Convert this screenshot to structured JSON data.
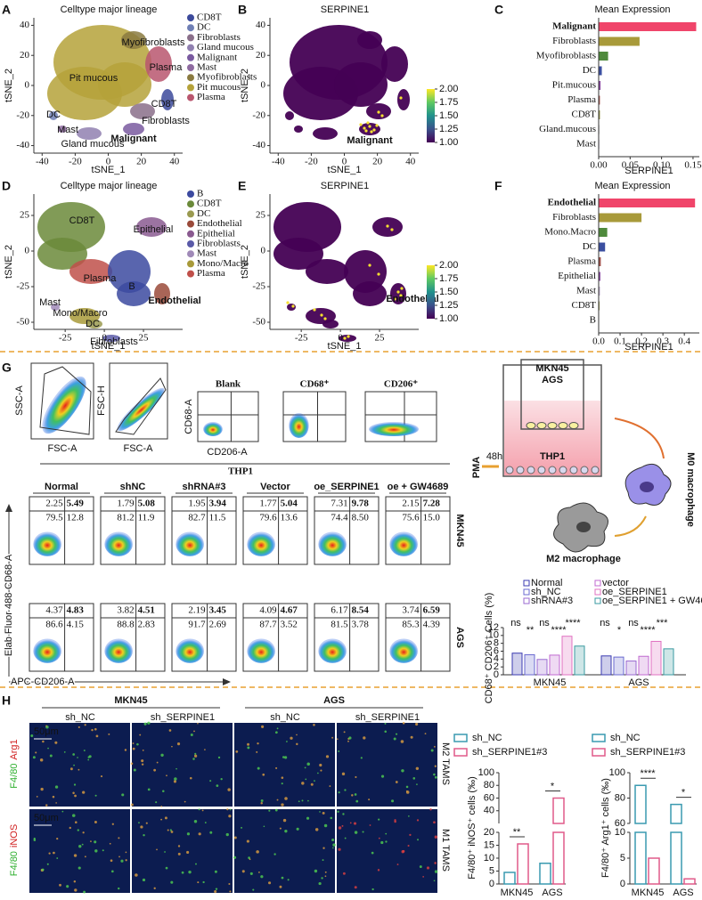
{
  "A": {
    "letter": "A",
    "title": "Celltype major lineage",
    "x_label": "tSNE_1",
    "y_label": "tSNE_2",
    "xticks": [
      -40,
      -20,
      0,
      20,
      40
    ],
    "yticks": [
      40,
      20,
      0,
      -20,
      -40
    ],
    "xlim": [
      -45,
      45
    ],
    "ylim": [
      -45,
      45
    ],
    "legend": [
      {
        "name": "CD8T",
        "color": "#3c4a9b"
      },
      {
        "name": "DC",
        "color": "#6f7fb5"
      },
      {
        "name": "Fibroblasts",
        "color": "#8a6f8a"
      },
      {
        "name": "Gland mucous",
        "color": "#9080b0"
      },
      {
        "name": "Malignant",
        "color": "#7a5aa0"
      },
      {
        "name": "Mast",
        "color": "#8e6aa0"
      },
      {
        "name": "Myofibroblasts",
        "color": "#8a7a40"
      },
      {
        "name": "Pit mucous",
        "color": "#b5a23a"
      },
      {
        "name": "Plasma",
        "color": "#b9566e"
      }
    ],
    "cluster_labels": [
      "Myofibroblasts",
      "Plasma",
      "Pit mucous",
      "CD8T",
      "Fibroblasts",
      "DC",
      "Mast",
      "Gland mucous",
      "Malignant"
    ]
  },
  "B": {
    "letter": "B",
    "title": "SERPINE1",
    "x_label": "tSNE_1",
    "y_label": "tSNE_2",
    "xticks": [
      -40,
      -20,
      0,
      20,
      40
    ],
    "yticks": [
      40,
      20,
      0,
      -20,
      -40
    ],
    "xlim": [
      -45,
      45
    ],
    "ylim": [
      -45,
      45
    ],
    "colorbar_lim": [
      1,
      2
    ],
    "colorbar_ticks": [
      {
        "value": 2,
        "label": "2.00"
      },
      {
        "value": 1.75,
        "label": "1.75"
      },
      {
        "value": 1.5,
        "label": "1.50"
      },
      {
        "value": 1.25,
        "label": "1.25"
      },
      {
        "value": 1,
        "label": "1.00"
      }
    ],
    "cluster_label": "Malignant"
  },
  "C": {
    "letter": "C",
    "type": "bar",
    "title": "Mean Expression",
    "x_label": "SERPINE1",
    "categories": [
      "Malignant",
      "Fibroblasts",
      "Myofibroblasts",
      "DC",
      "Pit.mucous",
      "Plasma",
      "CD8T",
      "Gland.mucous",
      "Mast"
    ],
    "values": [
      0.155,
      0.065,
      0.015,
      0.005,
      0.003,
      0.002,
      0.002,
      0.001,
      0.001
    ],
    "colors": [
      "#f0456a",
      "#a89a3a",
      "#4f8a3c",
      "#3b4fa0",
      "#8a4aa0",
      "#a0504a",
      "#8a8a3a",
      "#9a9a9a",
      "#b8a8c8"
    ],
    "xlim": [
      0,
      0.16
    ],
    "xticks": [
      {
        "value": 0,
        "label": "0.00"
      },
      {
        "value": 0.05,
        "label": "0.05"
      },
      {
        "value": 0.1,
        "label": "0.10"
      },
      {
        "value": 0.15,
        "label": "0.15"
      }
    ]
  },
  "D": {
    "letter": "D",
    "title": "Celltype major lineage",
    "x_label": "tSNE_1",
    "y_label": "tSNE_2",
    "xticks": [
      -25,
      0,
      25
    ],
    "yticks": [
      25,
      0,
      -25,
      -50
    ],
    "xlim": [
      -45,
      50
    ],
    "ylim": [
      -55,
      40
    ],
    "legend": [
      {
        "name": "B",
        "color": "#3c4aa0"
      },
      {
        "name": "CD8T",
        "color": "#6b8a3a"
      },
      {
        "name": "DC",
        "color": "#9a9a50"
      },
      {
        "name": "Endothelial",
        "color": "#9a4a3a"
      },
      {
        "name": "Epithelial",
        "color": "#8a5a90"
      },
      {
        "name": "Fibroblasts",
        "color": "#5a5aa8"
      },
      {
        "name": "Mast",
        "color": "#a08ab8"
      },
      {
        "name": "Mono/Macro",
        "color": "#a89a3a"
      },
      {
        "name": "Plasma",
        "color": "#c0504a"
      }
    ],
    "cluster_labels": [
      "CD8T",
      "Epithelial",
      "Plasma",
      "B",
      "Endothelial",
      "Mast",
      "Mono/Macro",
      "DC",
      "Fibroblasts"
    ]
  },
  "E": {
    "letter": "E",
    "title": "SERPINE1",
    "x_label": "tSNE_1",
    "y_label": "tSNE_2",
    "xticks": [
      -25,
      0,
      25
    ],
    "yticks": [
      25,
      0,
      -25,
      -50
    ],
    "xlim": [
      -45,
      50
    ],
    "ylim": [
      -55,
      40
    ],
    "colorbar_lim": [
      1,
      2
    ],
    "colorbar_ticks": [
      {
        "value": 2,
        "label": "2.00"
      },
      {
        "value": 1.75,
        "label": "1.75"
      },
      {
        "value": 1.5,
        "label": "1.50"
      },
      {
        "value": 1.25,
        "label": "1.25"
      },
      {
        "value": 1,
        "label": "1.00"
      }
    ],
    "cluster_label": "Endothelial"
  },
  "F": {
    "letter": "F",
    "type": "bar",
    "title": "Mean Expression",
    "x_label": "SERPINE1",
    "categories": [
      "Endothelial",
      "Fibroblasts",
      "Mono.Macro",
      "DC",
      "Plasma",
      "Epithelial",
      "Mast",
      "CD8T",
      "B"
    ],
    "values": [
      0.45,
      0.2,
      0.04,
      0.03,
      0.01,
      0.008,
      0.006,
      0.004,
      0.002
    ],
    "colors": [
      "#f0456a",
      "#a89a3a",
      "#4f8a3c",
      "#3b4fa0",
      "#a0504a",
      "#8a4aa0",
      "#b8a8c8",
      "#8a8a3a",
      "#3c4aa0"
    ],
    "xlim": [
      0,
      0.47
    ],
    "xticks": [
      {
        "value": 0,
        "label": "0.0"
      },
      {
        "value": 0.1,
        "label": "0.1"
      },
      {
        "value": 0.2,
        "label": "0.2"
      },
      {
        "value": 0.3,
        "label": "0.3"
      },
      {
        "value": 0.4,
        "label": "0.4"
      }
    ]
  },
  "G": {
    "letter": "G",
    "gating_axes": [
      "SSC-A",
      "FSC-A",
      "FSC-H",
      "FSC-A",
      "CD68-A",
      "CD206-A"
    ],
    "gates": [
      "Blank",
      "CD68⁺",
      "CD206⁺"
    ],
    "cell_line": "THP1",
    "conditions": [
      "Normal",
      "shNC",
      "shRNA#3",
      "Vector",
      "oe_SERPINE1",
      "oe + GW4689"
    ],
    "rows": [
      {
        "name": "MKN45",
        "quadrants": [
          [
            "2.25",
            "5.49",
            "79.5",
            "12.8"
          ],
          [
            "1.79",
            "5.08",
            "81.2",
            "11.9"
          ],
          [
            "1.95",
            "3.94",
            "82.7",
            "11.5"
          ],
          [
            "1.77",
            "5.04",
            "79.6",
            "13.6"
          ],
          [
            "7.31",
            "9.78",
            "74.4",
            "8.50"
          ],
          [
            "2.15",
            "7.28",
            "75.6",
            "15.0"
          ]
        ]
      },
      {
        "name": "AGS",
        "quadrants": [
          [
            "4.37",
            "4.83",
            "86.6",
            "4.15"
          ],
          [
            "3.82",
            "4.51",
            "88.8",
            "2.83"
          ],
          [
            "2.19",
            "3.45",
            "91.7",
            "2.69"
          ],
          [
            "4.09",
            "4.67",
            "87.7",
            "3.52"
          ],
          [
            "6.17",
            "8.54",
            "81.5",
            "3.78"
          ],
          [
            "3.74",
            "6.59",
            "85.3",
            "4.39"
          ]
        ]
      }
    ],
    "flow_y_label": "Elab Fluor 488-CD68-A",
    "flow_x_label": "APC-CD206-A",
    "schematic": {
      "wells": [
        "MKN45",
        "AGS"
      ],
      "stimulus": "PMA",
      "time": "48h",
      "cells": "THP1",
      "m0": "M0 macrophage",
      "m2": "M2 macrophage"
    },
    "bar_chart": {
      "type": "bar",
      "y_label": "CD68⁺ CD206⁺ Cells (%)",
      "ylim": [
        0,
        12
      ],
      "yticks": [
        0,
        2,
        4,
        6,
        8,
        10,
        12
      ],
      "groups": [
        "MKN45",
        "AGS"
      ],
      "series": [
        {
          "name": "Normal",
          "color": "#3b3bb0",
          "values": [
            5.5,
            4.8
          ]
        },
        {
          "name": "sh_NC",
          "color": "#6a6ad0",
          "values": [
            5.1,
            4.5
          ]
        },
        {
          "name": "shRNA#3",
          "color": "#9a6ad0",
          "values": [
            3.9,
            3.5
          ]
        },
        {
          "name": "vector",
          "color": "#c06ad0",
          "values": [
            5.0,
            4.7
          ]
        },
        {
          "name": "oe_SERPINE1",
          "color": "#e070c0",
          "values": [
            9.8,
            8.5
          ]
        },
        {
          "name": "oe_SERPINE1 + GW4689",
          "color": "#3a9aa0",
          "values": [
            7.3,
            6.6
          ]
        }
      ],
      "significance": [
        "ns",
        "**",
        "ns",
        "****",
        "****",
        "ns",
        "*",
        "ns",
        "****",
        "***"
      ]
    }
  },
  "H": {
    "letter": "H",
    "groups": [
      "MKN45",
      "AGS"
    ],
    "conditions": [
      "sh_NC",
      "sh_SERPINE1",
      "sh_NC",
      "sh_SERPINE1"
    ],
    "stain_rows": [
      {
        "marker": "F4/80",
        "target": "Arg1",
        "tam": "M2 TAMS"
      },
      {
        "marker": "F4/80",
        "target": "iNOS",
        "tam": "M1 TAMS"
      }
    ],
    "scale_bar": "50μm",
    "charts": [
      {
        "type": "bar",
        "y_label": "F4/80⁺ iNOS⁺ cells (‰)",
        "groups": [
          "MKN45",
          "AGS"
        ],
        "ylim_lower": [
          0,
          20
        ],
        "ylim_upper": [
          20,
          100
        ],
        "yticks": [
          0,
          5,
          10,
          15,
          20,
          40,
          60,
          80,
          100
        ],
        "series": [
          {
            "name": "sh_NC",
            "color": "#3a9ab0",
            "values": [
              4.5,
              8
            ]
          },
          {
            "name": "sh_SERPINE1#3",
            "color": "#e05a8a",
            "values": [
              15.5,
              60
            ]
          }
        ],
        "significance": [
          "**",
          "*"
        ]
      },
      {
        "type": "bar",
        "y_label": "F4/80⁺ Arg1⁺ cells (‰)",
        "groups": [
          "MKN45",
          "AGS"
        ],
        "ylim_lower": [
          0,
          10
        ],
        "ylim_upper": [
          60,
          100
        ],
        "yticks": [
          0,
          5,
          10,
          60,
          80,
          100
        ],
        "series": [
          {
            "name": "sh_NC",
            "color": "#3a9ab0",
            "values": [
              90,
              75
            ]
          },
          {
            "name": "sh_SERPINE1#3",
            "color": "#e05a8a",
            "values": [
              5,
              1
            ]
          }
        ],
        "significance": [
          "****",
          "*"
        ]
      }
    ]
  }
}
